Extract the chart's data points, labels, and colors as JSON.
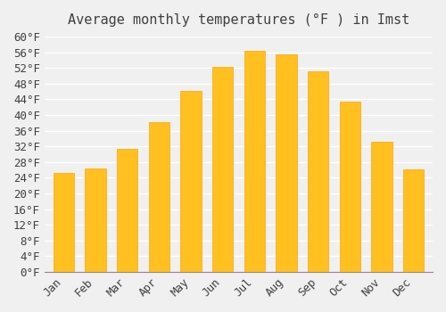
{
  "title": "Average monthly temperatures (°F ) in Imst",
  "months": [
    "Jan",
    "Feb",
    "Mar",
    "Apr",
    "May",
    "Jun",
    "Jul",
    "Aug",
    "Sep",
    "Oct",
    "Nov",
    "Dec"
  ],
  "values": [
    25.2,
    26.4,
    31.3,
    38.1,
    46.2,
    52.3,
    56.3,
    55.4,
    51.1,
    43.3,
    33.1,
    26.2
  ],
  "bar_color_main": "#FFC020",
  "bar_color_edge": "#FFA500",
  "background_color": "#F0F0F0",
  "grid_color": "#FFFFFF",
  "text_color": "#404040",
  "ylim": [
    0,
    60
  ],
  "ytick_step": 4,
  "ylabel_suffix": "°F",
  "title_fontsize": 11,
  "tick_fontsize": 9,
  "font_family": "monospace"
}
